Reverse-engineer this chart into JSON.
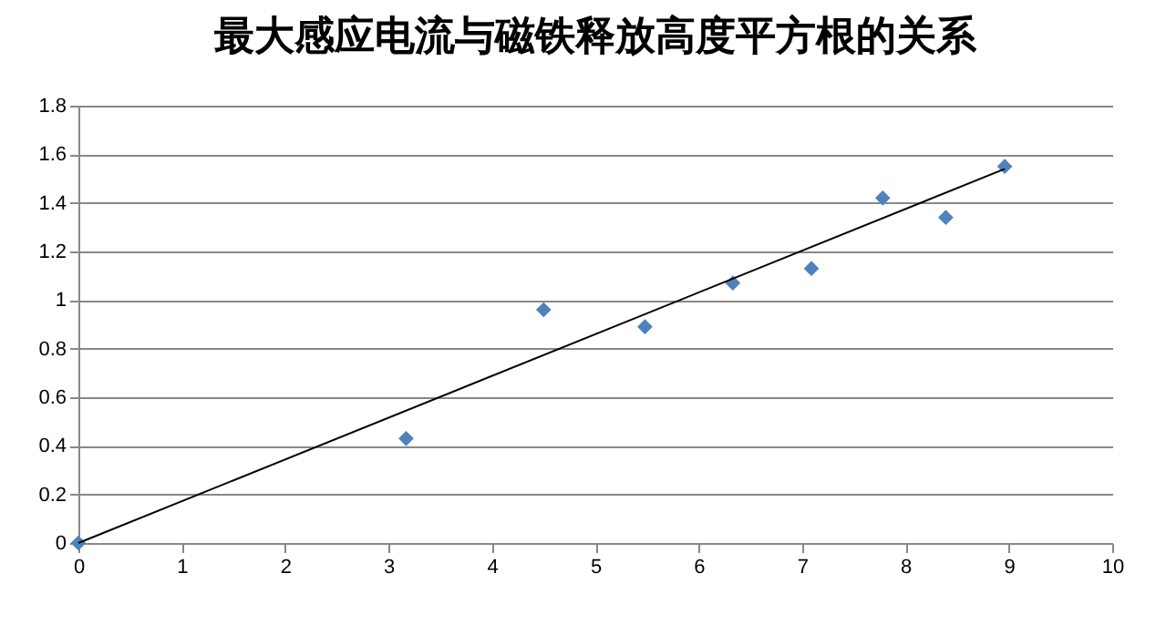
{
  "chart_data": {
    "type": "scatter",
    "title": "最大感应电流与磁铁释放高度平方根的关系",
    "xlim": [
      0,
      10
    ],
    "xticks": [
      0,
      1,
      2,
      3,
      4,
      5,
      6,
      7,
      8,
      9,
      10
    ],
    "ylim": [
      0,
      1.8
    ],
    "yticks": [
      0,
      0.2,
      0.4,
      0.6,
      0.8,
      1,
      1.2,
      1.4,
      1.6,
      1.8
    ],
    "grid": "y",
    "marker": "diamond",
    "series": [
      {
        "color": "#4f81bd",
        "x": [
          0,
          3.17,
          4.5,
          5.48,
          6.33,
          7.09,
          7.78,
          8.39,
          8.96
        ],
        "values": [
          0,
          0.43,
          0.96,
          0.89,
          1.07,
          1.13,
          1.42,
          1.34,
          1.55
        ]
      },
      {
        "type": "line",
        "color": "#000000",
        "line_style": "solid",
        "marker": "none",
        "x": [
          0,
          8.96
        ],
        "values": [
          0,
          1.54
        ]
      }
    ]
  }
}
